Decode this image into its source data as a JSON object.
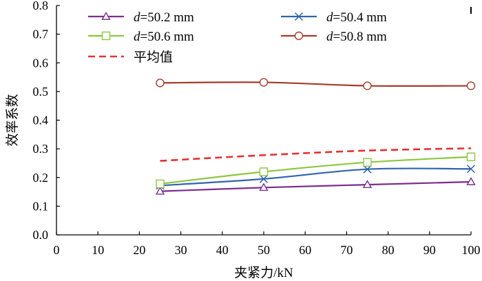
{
  "chart_data": {
    "type": "line",
    "title": "",
    "xlabel": "夹紧力/kN",
    "ylabel": "效率系数",
    "xlim": [
      0,
      100
    ],
    "ylim": [
      0.0,
      0.8
    ],
    "xticks": [
      "0",
      "10",
      "20",
      "30",
      "40",
      "50",
      "60",
      "70",
      "80",
      "90",
      "100"
    ],
    "yticks": [
      "0.0",
      "0.1",
      "0.2",
      "0.3",
      "0.4",
      "0.5",
      "0.6",
      "0.7",
      "0.8"
    ],
    "grid": false,
    "legend_position": "top",
    "series": [
      {
        "name_prefix": "d",
        "name_suffix": "=50.2 mm",
        "marker": "triangle",
        "color": "#7b2d8e",
        "x": [
          25,
          50,
          75,
          100
        ],
        "values": [
          0.152,
          0.165,
          0.175,
          0.185
        ]
      },
      {
        "name_prefix": "d",
        "name_suffix": "=50.4 mm",
        "marker": "cross",
        "color": "#2f63ad",
        "x": [
          25,
          50,
          75,
          100
        ],
        "values": [
          0.172,
          0.195,
          0.229,
          0.23
        ]
      },
      {
        "name_prefix": "d",
        "name_suffix": "=50.6 mm",
        "marker": "square",
        "color": "#8cc63f",
        "x": [
          25,
          50,
          75,
          100
        ],
        "values": [
          0.178,
          0.22,
          0.253,
          0.272
        ]
      },
      {
        "name_prefix": "d",
        "name_suffix": "=50.8 mm",
        "marker": "circle",
        "color": "#a23b2c",
        "x": [
          25,
          50,
          75,
          100
        ],
        "values": [
          0.53,
          0.532,
          0.52,
          0.52
        ]
      },
      {
        "name": "平均值",
        "marker": "none",
        "dashed": true,
        "color": "#e53030",
        "x": [
          25,
          50,
          75,
          100
        ],
        "values": [
          0.258,
          0.278,
          0.294,
          0.302
        ]
      }
    ]
  }
}
